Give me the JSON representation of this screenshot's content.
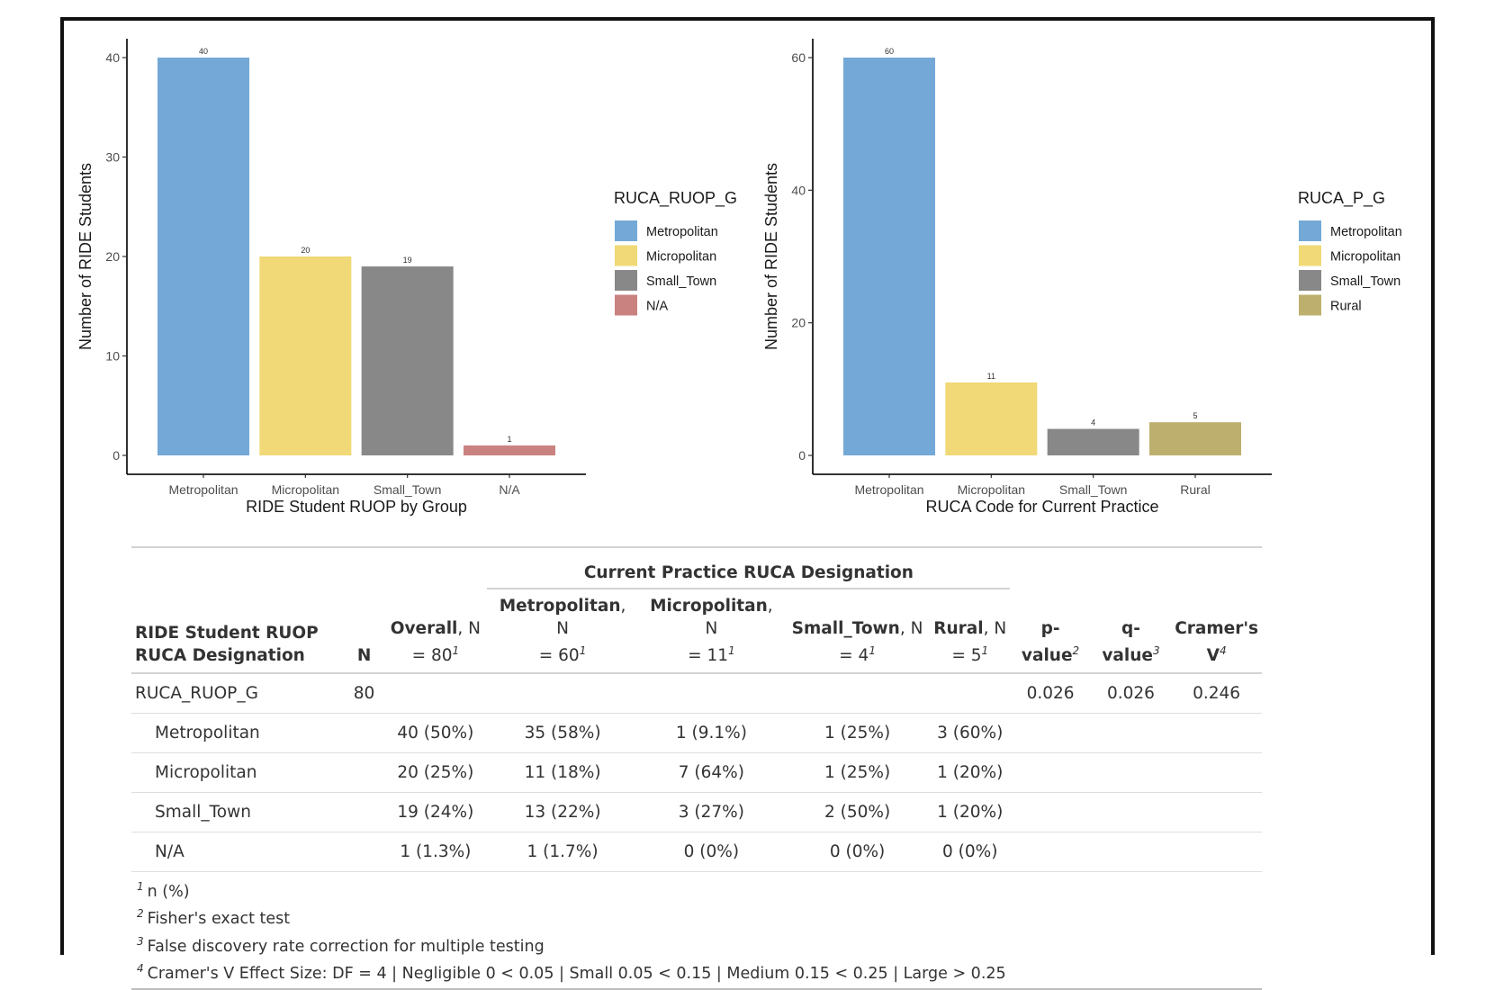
{
  "chart_data": [
    {
      "type": "bar",
      "categories": [
        "Metropolitan",
        "Micropolitan",
        "Small_Town",
        "N/A"
      ],
      "values": [
        40,
        20,
        19,
        1
      ],
      "value_labels": [
        "40",
        "20",
        "19",
        "1"
      ],
      "colors": [
        "#74a8d6",
        "#f0d976",
        "#888888",
        "#c98280"
      ],
      "xlabel": "RIDE Student RUOP by Group",
      "ylabel": "Number of RIDE Students",
      "ylim": [
        0,
        40
      ],
      "yticks": [
        0,
        10,
        20,
        30,
        40
      ],
      "legend": {
        "title": "RUCA_RUOP_G",
        "position": "right",
        "items": [
          {
            "label": "Metropolitan",
            "color": "#74a8d6"
          },
          {
            "label": "Micropolitan",
            "color": "#f0d976"
          },
          {
            "label": "Small_Town",
            "color": "#888888"
          },
          {
            "label": "N/A",
            "color": "#c98280"
          }
        ]
      },
      "grid": false
    },
    {
      "type": "bar",
      "categories": [
        "Metropolitan",
        "Micropolitan",
        "Small_Town",
        "Rural"
      ],
      "values": [
        60,
        11,
        4,
        5
      ],
      "value_labels": [
        "60",
        "11",
        "4",
        "5"
      ],
      "colors": [
        "#74a8d6",
        "#f0d976",
        "#888888",
        "#bdb06e"
      ],
      "xlabel": "RUCA Code for Current Practice",
      "ylabel": "Number of RIDE Students",
      "ylim": [
        0,
        60
      ],
      "yticks": [
        0,
        20,
        40,
        60
      ],
      "legend": {
        "title": "RUCA_P_G",
        "position": "right",
        "items": [
          {
            "label": "Metropolitan",
            "color": "#74a8d6"
          },
          {
            "label": "Micropolitan",
            "color": "#f0d976"
          },
          {
            "label": "Small_Town",
            "color": "#888888"
          },
          {
            "label": "Rural",
            "color": "#bdb06e"
          }
        ]
      },
      "grid": false
    }
  ],
  "table": {
    "spanner": "Current Practice RUCA Designation",
    "headers": {
      "label_line1": "RIDE Student RUOP",
      "label_line2": "RUCA Designation",
      "n": "N",
      "overall": {
        "name": "Overall",
        "n_text": ", N",
        "eq": "= 80",
        "sup": "1"
      },
      "metro": {
        "name": "Metropolitan",
        "n_text": ", N",
        "eq": "= 60",
        "sup": "1"
      },
      "micro": {
        "name": "Micropolitan",
        "n_text": ", N",
        "eq": "= 11",
        "sup": "1"
      },
      "small": {
        "name": "Small_Town",
        "n_text": ", N",
        "eq": "= 4",
        "sup": "1"
      },
      "rural": {
        "name": "Rural",
        "n_text": ", N",
        "eq": "= 5",
        "sup": "1"
      },
      "p": {
        "line1": "p-",
        "line2": "value",
        "sup": "2"
      },
      "q": {
        "line1": "q-",
        "line2": "value",
        "sup": "3"
      },
      "v": {
        "line1": "Cramer's",
        "line2": "V",
        "sup": "4"
      }
    },
    "variable_row": {
      "label": "RUCA_RUOP_G",
      "n": "80",
      "p": "0.026",
      "q": "0.026",
      "v": "0.246"
    },
    "rows": [
      {
        "label": "Metropolitan",
        "overall": "40 (50%)",
        "metro": "35 (58%)",
        "micro": "1 (9.1%)",
        "small": "1 (25%)",
        "rural": "3 (60%)"
      },
      {
        "label": "Micropolitan",
        "overall": "20 (25%)",
        "metro": "11 (18%)",
        "micro": "7 (64%)",
        "small": "1 (25%)",
        "rural": "1 (20%)"
      },
      {
        "label": "Small_Town",
        "overall": "19 (24%)",
        "metro": "13 (22%)",
        "micro": "3 (27%)",
        "small": "2 (50%)",
        "rural": "1 (20%)"
      },
      {
        "label": "N/A",
        "overall": "1 (1.3%)",
        "metro": "1 (1.7%)",
        "micro": "0 (0%)",
        "small": "0 (0%)",
        "rural": "0 (0%)"
      }
    ],
    "footnotes": [
      {
        "mark": "1",
        "text": "n (%)"
      },
      {
        "mark": "2",
        "text": "Fisher's exact test"
      },
      {
        "mark": "3",
        "text": "False discovery rate correction for multiple testing"
      },
      {
        "mark": "4",
        "text": "Cramer's V Effect Size: DF = 4 | Negligible 0 < 0.05 | Small 0.05 < 0.15 | Medium 0.15 < 0.25 | Large > 0.25"
      }
    ]
  }
}
